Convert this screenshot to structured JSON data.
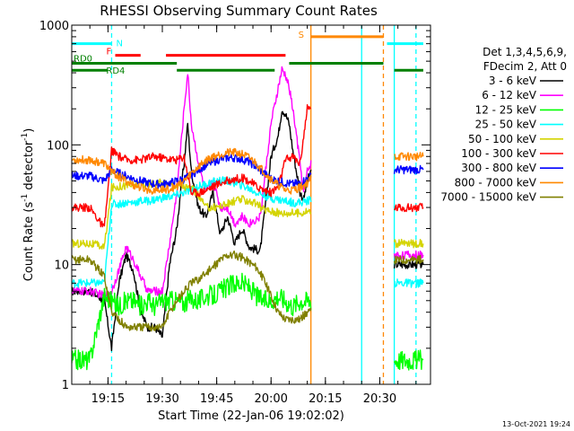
{
  "chart_data": {
    "type": "line",
    "title": "RHESSI Observing Summary Count Rates",
    "xlabel": "Start Time (22-Jan-06 19:02:02)",
    "ylabel_parts": [
      "Count Rate (s",
      "-1",
      " detector",
      "-1",
      ")"
    ],
    "y_scale": "log",
    "ylim": [
      1,
      1000
    ],
    "xlim_min": [
      3,
      102
    ],
    "y_ticks": [
      {
        "value": 1,
        "label": "1"
      },
      {
        "value": 10,
        "label": "10"
      },
      {
        "value": 100,
        "label": "100"
      },
      {
        "value": 1000,
        "label": "1000"
      }
    ],
    "x_ticks": [
      {
        "min": 13,
        "label": "19:15"
      },
      {
        "min": 28,
        "label": "19:30"
      },
      {
        "min": 43,
        "label": "19:45"
      },
      {
        "min": 58,
        "label": "20:00"
      },
      {
        "min": 73,
        "label": "20:15"
      },
      {
        "min": 88,
        "label": "20:30"
      }
    ],
    "legend": {
      "placement": "right",
      "header": [
        "Det 1,3,4,5,6,9,",
        "FDecim 2, Att 0"
      ],
      "entries": [
        {
          "label": "3 - 6 keV",
          "color": "#000000"
        },
        {
          "label": "6 - 12 keV",
          "color": "#ff00ff"
        },
        {
          "label": "12 - 25 keV",
          "color": "#00ff00"
        },
        {
          "label": "25 - 50 keV",
          "color": "#00ffff"
        },
        {
          "label": "50 - 100 keV",
          "color": "#d4d400"
        },
        {
          "label": "100 - 300 keV",
          "color": "#ff0000"
        },
        {
          "label": "300 - 800 keV",
          "color": "#0000ff"
        },
        {
          "label": "800 - 7000 keV",
          "color": "#ff8800"
        },
        {
          "label": "7000 - 15000 keV",
          "color": "#808000"
        }
      ]
    },
    "flag_bars": [
      {
        "label": "N",
        "color": "#00ffff",
        "y": 700,
        "segments": [
          [
            3,
            14
          ],
          [
            90,
            100
          ]
        ]
      },
      {
        "label": "F",
        "color": "#ff0000",
        "y": 560,
        "segments": [
          [
            15,
            22
          ],
          [
            29,
            62
          ]
        ]
      },
      {
        "label": "S",
        "color": "#ff8800",
        "y": 800,
        "segments": [
          [
            69,
            89
          ]
        ]
      },
      {
        "label": "RD0",
        "color": "#008000",
        "y": 480,
        "segments": [
          [
            3,
            32
          ],
          [
            63,
            89
          ]
        ]
      },
      {
        "label": "RD4",
        "color": "#008000",
        "y": 420,
        "segments": [
          [
            3,
            13
          ],
          [
            32,
            59
          ],
          [
            92,
            100
          ]
        ]
      }
    ],
    "vertical_markers": [
      {
        "min": 14,
        "color": "#00ffff",
        "style": "dashed"
      },
      {
        "min": 69,
        "color": "#ff8800",
        "style": "solid"
      },
      {
        "min": 83,
        "color": "#00ffff",
        "style": "solid"
      },
      {
        "min": 89,
        "color": "#ff8800",
        "style": "dashed"
      },
      {
        "min": 92,
        "color": "#00ffff",
        "style": "solid"
      },
      {
        "min": 98,
        "color": "#00ffff",
        "style": "dashed"
      }
    ],
    "data_gaps": [
      [
        69,
        92
      ]
    ],
    "series": [
      {
        "name": "3 - 6 keV",
        "color": "#000000",
        "x": [
          3,
          8,
          12,
          14,
          16,
          18,
          20,
          22,
          24,
          26,
          28,
          30,
          32,
          33,
          34,
          35,
          36,
          38,
          40,
          42,
          44,
          46,
          48,
          50,
          52,
          55,
          58,
          60,
          61,
          62,
          63,
          64,
          65,
          66,
          67,
          68,
          69,
          92,
          94,
          96,
          98,
          100
        ],
        "y": [
          6,
          6,
          5,
          2,
          7,
          12,
          9,
          4,
          3,
          3,
          2.5,
          10,
          20,
          40,
          70,
          150,
          60,
          30,
          25,
          40,
          18,
          25,
          15,
          20,
          14,
          13,
          80,
          120,
          200,
          180,
          150,
          90,
          60,
          40,
          35,
          50,
          60,
          10,
          10,
          10,
          10,
          10
        ]
      },
      {
        "name": "6 - 12 keV",
        "color": "#ff00ff",
        "x": [
          3,
          8,
          12,
          14,
          16,
          18,
          20,
          22,
          24,
          26,
          28,
          30,
          32,
          33,
          34,
          35,
          36,
          38,
          40,
          42,
          44,
          46,
          48,
          50,
          52,
          55,
          58,
          60,
          61,
          62,
          63,
          64,
          65,
          66,
          67,
          68,
          69,
          92,
          94,
          96,
          98,
          100
        ],
        "y": [
          6,
          6,
          5.5,
          6,
          9,
          14,
          11,
          8,
          6,
          6,
          6,
          15,
          40,
          90,
          200,
          400,
          150,
          70,
          40,
          50,
          30,
          30,
          22,
          25,
          22,
          25,
          150,
          300,
          420,
          380,
          300,
          200,
          120,
          70,
          40,
          60,
          70,
          12,
          12,
          12,
          12,
          12
        ]
      },
      {
        "name": "12 - 25 keV",
        "color": "#00ff00",
        "x": [
          3,
          8,
          12,
          14,
          16,
          18,
          20,
          22,
          24,
          26,
          28,
          30,
          32,
          34,
          36,
          38,
          40,
          42,
          44,
          46,
          48,
          50,
          52,
          54,
          56,
          58,
          60,
          62,
          64,
          66,
          68,
          69,
          92,
          94,
          96,
          98,
          100
        ],
        "y": [
          1.6,
          1.6,
          5.5,
          5,
          4.5,
          5,
          5,
          4.5,
          5,
          4.5,
          5,
          5,
          5,
          4.8,
          5.2,
          5,
          5.5,
          5.5,
          6,
          6.5,
          7,
          7,
          6.5,
          5.5,
          5,
          5,
          5.5,
          5,
          4.5,
          5,
          5,
          5,
          1.6,
          1.6,
          1.6,
          1.6,
          1.6
        ]
      },
      {
        "name": "25 - 50 keV",
        "color": "#00ffff",
        "x": [
          3,
          8,
          12,
          14,
          16,
          18,
          20,
          22,
          24,
          26,
          28,
          30,
          32,
          34,
          36,
          38,
          40,
          42,
          44,
          46,
          48,
          50,
          52,
          54,
          56,
          58,
          60,
          62,
          64,
          66,
          68,
          69,
          92,
          94,
          96,
          98,
          100
        ],
        "y": [
          7,
          7,
          7,
          32,
          32,
          33,
          33,
          34,
          34,
          35,
          36,
          37,
          38,
          40,
          42,
          45,
          47,
          49,
          50,
          50,
          48,
          46,
          43,
          40,
          38,
          36,
          35,
          34,
          33,
          33,
          34,
          35,
          7,
          7,
          7,
          7,
          7
        ]
      },
      {
        "name": "50 - 100 keV",
        "color": "#d4d400",
        "x": [
          3,
          8,
          12,
          14,
          16,
          18,
          20,
          22,
          24,
          26,
          28,
          30,
          32,
          34,
          36,
          38,
          40,
          42,
          44,
          46,
          48,
          50,
          52,
          54,
          56,
          58,
          60,
          62,
          64,
          66,
          68,
          69,
          92,
          94,
          96,
          98,
          100
        ],
        "y": [
          15,
          15,
          14,
          44,
          45,
          46,
          46,
          47,
          47,
          48,
          48,
          47,
          46,
          45,
          43,
          38,
          30,
          30,
          31,
          32,
          34,
          35,
          34,
          32,
          29,
          28,
          27,
          27,
          27,
          27,
          28,
          28,
          15,
          15,
          15,
          15,
          15
        ]
      },
      {
        "name": "100 - 300 keV",
        "color": "#ff0000",
        "x": [
          3,
          8,
          12,
          14,
          16,
          18,
          20,
          22,
          24,
          26,
          28,
          30,
          32,
          34,
          36,
          38,
          40,
          42,
          44,
          46,
          48,
          50,
          52,
          54,
          56,
          58,
          60,
          62,
          64,
          66,
          68,
          69,
          92,
          94,
          96,
          98,
          100
        ],
        "y": [
          30,
          30,
          20,
          90,
          80,
          75,
          75,
          75,
          78,
          80,
          78,
          76,
          75,
          80,
          40,
          40,
          42,
          45,
          48,
          50,
          52,
          53,
          50,
          45,
          42,
          40,
          45,
          75,
          80,
          70,
          200,
          200,
          30,
          30,
          30,
          30,
          30
        ]
      },
      {
        "name": "300 - 800 keV",
        "color": "#0000ff",
        "x": [
          3,
          8,
          12,
          14,
          16,
          18,
          20,
          22,
          24,
          26,
          28,
          30,
          32,
          34,
          36,
          38,
          40,
          42,
          44,
          46,
          48,
          50,
          52,
          54,
          56,
          58,
          60,
          62,
          64,
          66,
          68,
          69,
          92,
          94,
          96,
          98,
          100
        ],
        "y": [
          55,
          55,
          50,
          62,
          58,
          55,
          52,
          50,
          48,
          47,
          47,
          48,
          50,
          52,
          56,
          62,
          68,
          72,
          76,
          78,
          78,
          76,
          72,
          65,
          58,
          52,
          50,
          48,
          47,
          48,
          52,
          55,
          62,
          62,
          62,
          62,
          62
        ]
      },
      {
        "name": "800 - 7000 keV",
        "color": "#ff8800",
        "x": [
          3,
          8,
          12,
          14,
          16,
          18,
          20,
          22,
          24,
          26,
          28,
          30,
          32,
          34,
          36,
          38,
          40,
          42,
          44,
          46,
          48,
          50,
          52,
          54,
          56,
          58,
          60,
          62,
          64,
          66,
          68,
          69,
          92,
          94,
          96,
          98,
          100
        ],
        "y": [
          75,
          75,
          70,
          60,
          54,
          50,
          46,
          44,
          42,
          42,
          42,
          43,
          45,
          50,
          58,
          66,
          74,
          80,
          84,
          86,
          86,
          84,
          78,
          70,
          60,
          52,
          46,
          42,
          42,
          44,
          48,
          52,
          80,
          80,
          80,
          80,
          80
        ]
      },
      {
        "name": "7000 - 15000 keV",
        "color": "#808000",
        "x": [
          3,
          8,
          12,
          14,
          16,
          18,
          20,
          22,
          24,
          26,
          28,
          30,
          32,
          34,
          36,
          38,
          40,
          42,
          44,
          46,
          48,
          50,
          52,
          54,
          56,
          58,
          60,
          62,
          64,
          66,
          68,
          69,
          92,
          94,
          96,
          98,
          100
        ],
        "y": [
          11,
          11,
          8,
          4,
          3.5,
          3,
          3,
          3,
          3,
          3,
          3,
          4,
          5,
          6,
          7,
          7.5,
          8.5,
          9.5,
          11,
          12,
          12,
          11.5,
          10.5,
          9.5,
          7.5,
          5.5,
          4,
          3.5,
          3.5,
          3.5,
          4,
          4,
          11,
          11,
          11,
          11,
          11
        ]
      }
    ]
  },
  "footer": {
    "timestamp": "13-Oct-2021 19:24"
  }
}
